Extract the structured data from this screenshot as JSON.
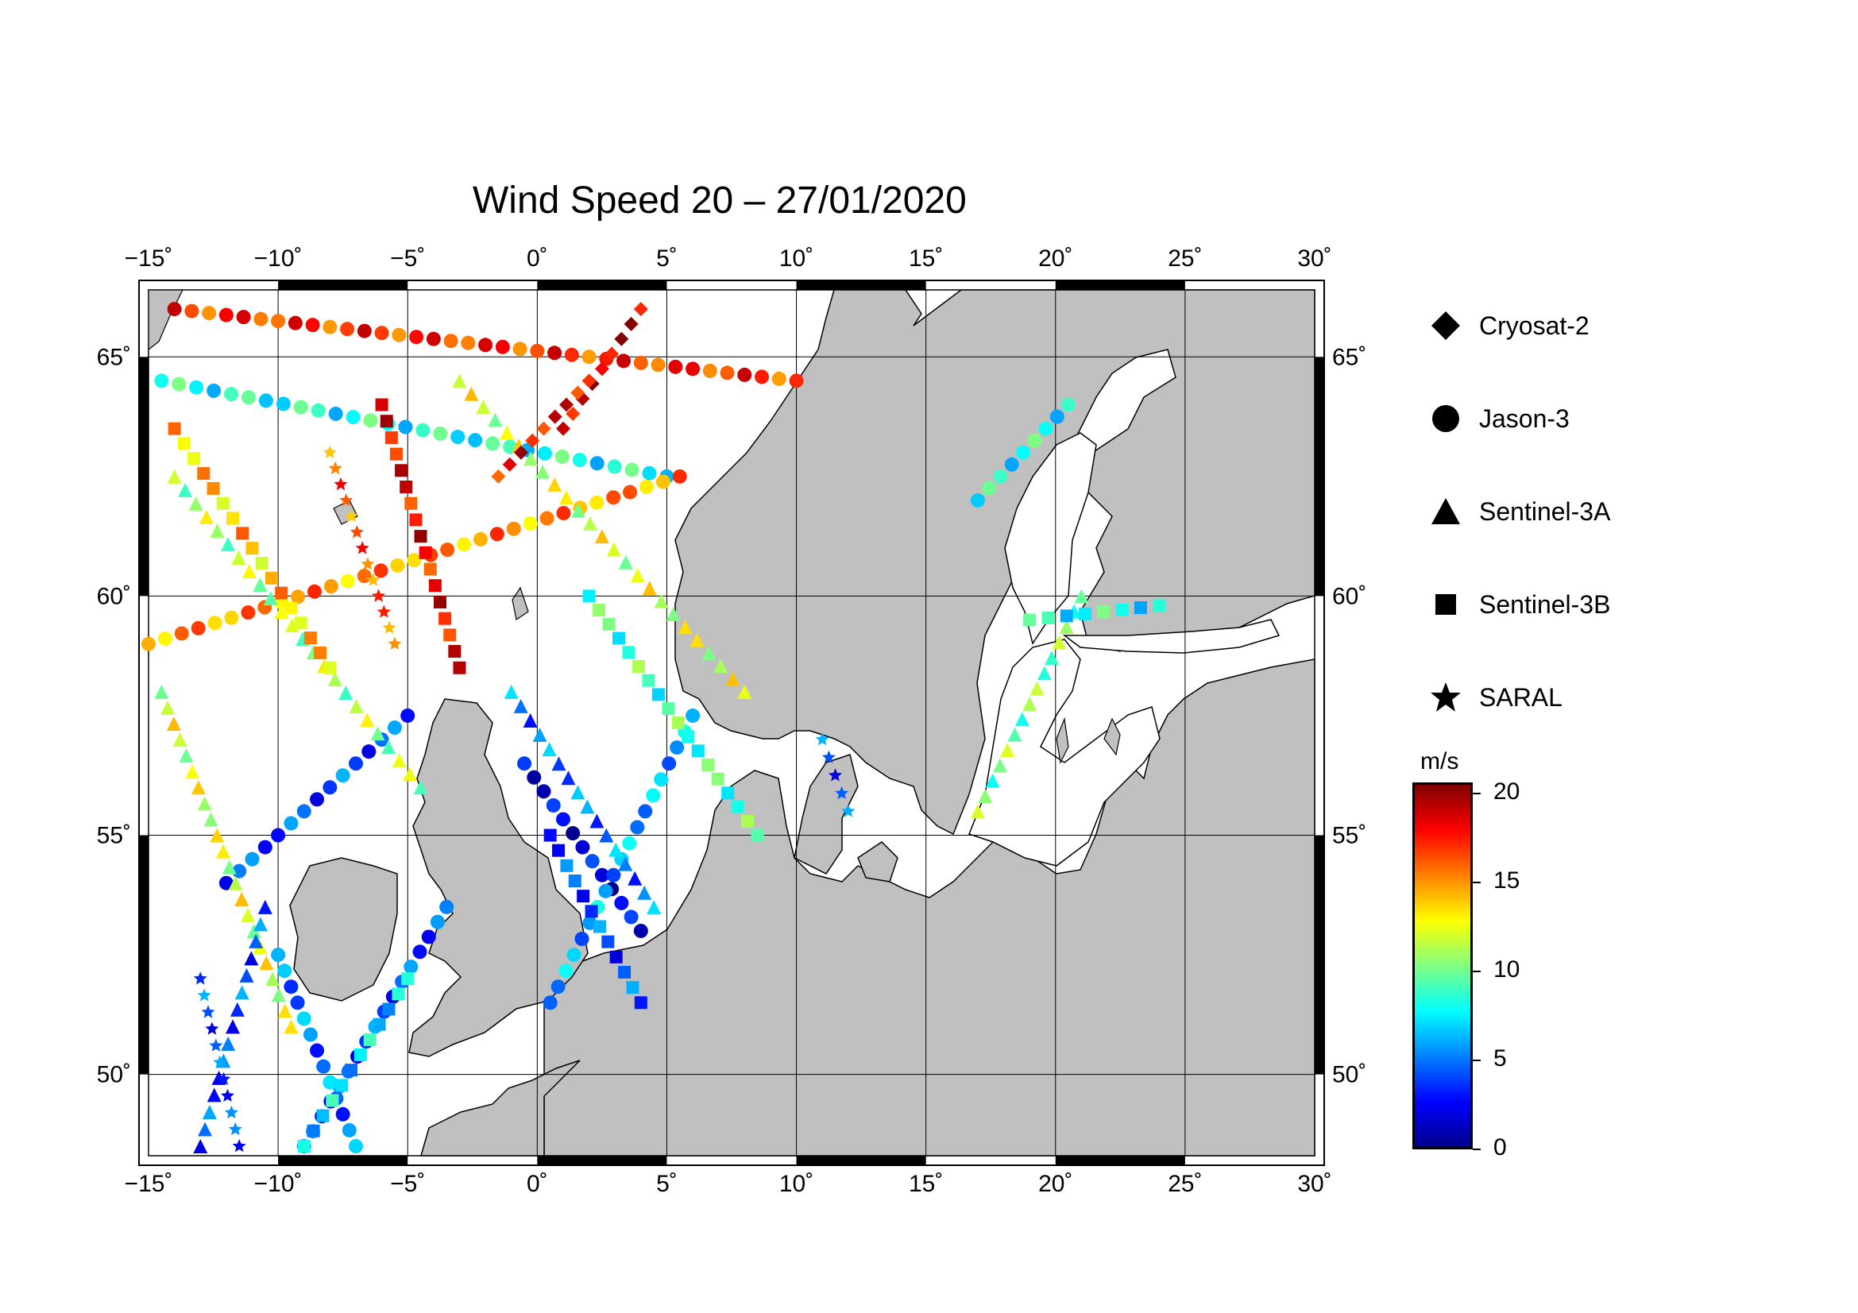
{
  "title": "Wind Speed 20 – 27/01/2020",
  "map": {
    "lon_range": [
      -15,
      30
    ],
    "lat_range": [
      48.3,
      66.4
    ],
    "lon_ticks": [
      "−15˚",
      "−10˚",
      "−5˚",
      "0˚",
      "5˚",
      "10˚",
      "15˚",
      "20˚",
      "25˚",
      "30˚"
    ],
    "lat_ticks": [
      "65˚",
      "60˚",
      "55˚",
      "50˚"
    ],
    "land_color": "#c0c0c0",
    "sea_color": "#ffffff",
    "grid": true
  },
  "legend": {
    "items": [
      {
        "label": "Cryosat-2",
        "icon": "diamond-icon"
      },
      {
        "label": "Jason-3",
        "icon": "circle-icon"
      },
      {
        "label": "Sentinel-3A",
        "icon": "triangle-icon"
      },
      {
        "label": "Sentinel-3B",
        "icon": "square-icon"
      },
      {
        "label": "SARAL",
        "icon": "star-icon"
      }
    ]
  },
  "colorbar": {
    "unit": "m/s",
    "ticks": [
      "20",
      "15",
      "10",
      "5",
      "0"
    ],
    "range": [
      0,
      20.5
    ],
    "colors": [
      "#00008c",
      "#0000ff",
      "#0080ff",
      "#00ffff",
      "#80ff80",
      "#ffff00",
      "#ff8000",
      "#ff0000",
      "#800000"
    ]
  },
  "tracks": [
    {
      "sat": "Jason-3",
      "lon0": -14.5,
      "lat0": 64.5,
      "lon1": 5.0,
      "lat1": 62.5,
      "speed": 8
    },
    {
      "sat": "Jason-3",
      "lon0": -14.0,
      "lat0": 66.0,
      "lon1": 10.0,
      "lat1": 64.5,
      "speed": 17
    },
    {
      "sat": "Jason-3",
      "lon0": -15.0,
      "lat0": 59.0,
      "lon1": 5.5,
      "lat1": 62.5,
      "speed": 15
    },
    {
      "sat": "Jason-3",
      "lon0": -12.0,
      "lat0": 54.0,
      "lon1": -5.0,
      "lat1": 57.5,
      "speed": 4
    },
    {
      "sat": "Jason-3",
      "lon0": -9.0,
      "lat0": 48.5,
      "lon1": -3.5,
      "lat1": 53.5,
      "speed": 4
    },
    {
      "sat": "Jason-3",
      "lon0": -0.5,
      "lat0": 56.5,
      "lon1": 4.0,
      "lat1": 53.0,
      "speed": 2
    },
    {
      "sat": "Jason-3",
      "lon0": 0.5,
      "lat0": 51.5,
      "lon1": 6.0,
      "lat1": 57.5,
      "speed": 6
    },
    {
      "sat": "Jason-3",
      "lon0": 17.0,
      "lat0": 62.0,
      "lon1": 20.5,
      "lat1": 64.0,
      "speed": 8
    },
    {
      "sat": "Jason-3",
      "lon0": -7.0,
      "lat0": 48.5,
      "lon1": -10.0,
      "lat1": 52.5,
      "speed": 5
    },
    {
      "sat": "Sentinel-3A",
      "lon0": -14.0,
      "lat0": 62.5,
      "lon1": -4.5,
      "lat1": 56.0,
      "speed": 11
    },
    {
      "sat": "Sentinel-3A",
      "lon0": -14.5,
      "lat0": 58.0,
      "lon1": -9.5,
      "lat1": 51.0,
      "speed": 12
    },
    {
      "sat": "Sentinel-3A",
      "lon0": -3.0,
      "lat0": 64.5,
      "lon1": 8.0,
      "lat1": 58.0,
      "speed": 12
    },
    {
      "sat": "Sentinel-3A",
      "lon0": -1.0,
      "lat0": 58.0,
      "lon1": 4.5,
      "lat1": 53.5,
      "speed": 5
    },
    {
      "sat": "Sentinel-3A",
      "lon0": 21.0,
      "lat0": 60.0,
      "lon1": 17.0,
      "lat1": 55.5,
      "speed": 10
    },
    {
      "sat": "Sentinel-3A",
      "lon0": -13.0,
      "lat0": 48.5,
      "lon1": -10.5,
      "lat1": 53.5,
      "speed": 4
    },
    {
      "sat": "Sentinel-3B",
      "lon0": -6.0,
      "lat0": 64.0,
      "lon1": -3.0,
      "lat1": 58.5,
      "speed": 18
    },
    {
      "sat": "Sentinel-3B",
      "lon0": -14.0,
      "lat0": 63.5,
      "lon1": -8.0,
      "lat1": 58.5,
      "speed": 14
    },
    {
      "sat": "Sentinel-3B",
      "lon0": 0.5,
      "lat0": 55.0,
      "lon1": 4.0,
      "lat1": 51.5,
      "speed": 4
    },
    {
      "sat": "Sentinel-3B",
      "lon0": 2.0,
      "lat0": 60.0,
      "lon1": 8.5,
      "lat1": 55.0,
      "speed": 9
    },
    {
      "sat": "Sentinel-3B",
      "lon0": 19.0,
      "lat0": 59.5,
      "lon1": 24.0,
      "lat1": 59.8,
      "speed": 8
    },
    {
      "sat": "Sentinel-3B",
      "lon0": -9.0,
      "lat0": 48.5,
      "lon1": -5.0,
      "lat1": 52.0,
      "speed": 7
    },
    {
      "sat": "SARAL",
      "lon0": -8.0,
      "lat0": 63.0,
      "lon1": -5.5,
      "lat1": 59.0,
      "speed": 16
    },
    {
      "sat": "SARAL",
      "lon0": -13.0,
      "lat0": 52.0,
      "lon1": -11.5,
      "lat1": 48.5,
      "speed": 4
    },
    {
      "sat": "SARAL",
      "lon0": 11.0,
      "lat0": 57.0,
      "lon1": 12.0,
      "lat1": 55.5,
      "speed": 4
    },
    {
      "sat": "Cryosat-2",
      "lon0": 1.0,
      "lat0": 63.5,
      "lon1": 4.0,
      "lat1": 66.0,
      "speed": 19
    },
    {
      "sat": "Cryosat-2",
      "lon0": -1.5,
      "lat0": 62.5,
      "lon1": 2.0,
      "lat1": 64.5,
      "speed": 18
    }
  ]
}
